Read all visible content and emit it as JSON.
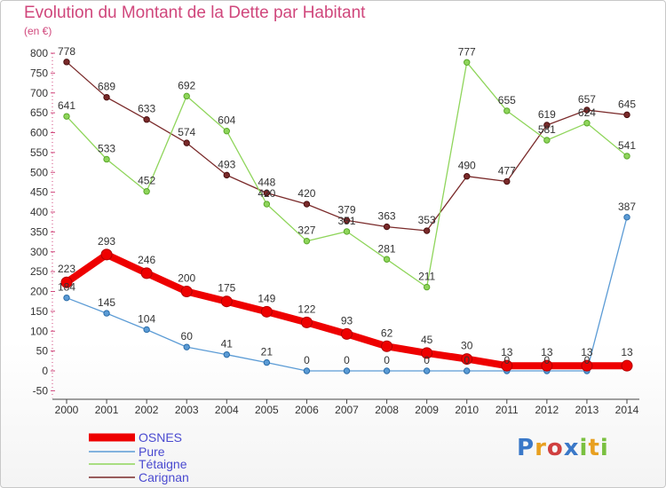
{
  "title": "Evolution du Montant de la Dette par Habitant",
  "unit_label": "(en €)",
  "logo_text": "Proxiti",
  "chart_data": {
    "type": "line",
    "title": "Evolution du Montant de la Dette par Habitant",
    "ylabel": "(en €)",
    "xlabel": "",
    "x": [
      "2000",
      "2001",
      "2002",
      "2003",
      "2004",
      "2005",
      "2006",
      "2007",
      "2008",
      "2009",
      "2010",
      "2011",
      "2012",
      "2013",
      "2014"
    ],
    "ylim": [
      -50,
      800
    ],
    "yticks": [
      -50,
      0,
      50,
      100,
      150,
      200,
      250,
      300,
      350,
      400,
      450,
      500,
      550,
      600,
      650,
      700,
      750,
      800
    ],
    "grid": false,
    "legend_position": "bottom-left",
    "series": [
      {
        "name": "OSNES",
        "color": "#ee0000",
        "values": [
          223,
          293,
          246,
          200,
          175,
          149,
          122,
          93,
          62,
          45,
          30,
          13,
          13,
          13,
          13
        ]
      },
      {
        "name": "Pure",
        "color": "#5b9bd5",
        "values": [
          184,
          145,
          104,
          60,
          41,
          21,
          0,
          0,
          0,
          0,
          0,
          0,
          0,
          0,
          387
        ]
      },
      {
        "name": "Tétaigne",
        "color": "#8fd55b",
        "values": [
          641,
          533,
          452,
          692,
          604,
          420,
          327,
          351,
          281,
          211,
          777,
          655,
          581,
          624,
          541
        ]
      },
      {
        "name": "Carignan",
        "color": "#7a2a2a",
        "values": [
          778,
          689,
          633,
          574,
          493,
          448,
          420,
          379,
          363,
          353,
          490,
          477,
          619,
          657,
          645
        ]
      }
    ]
  }
}
